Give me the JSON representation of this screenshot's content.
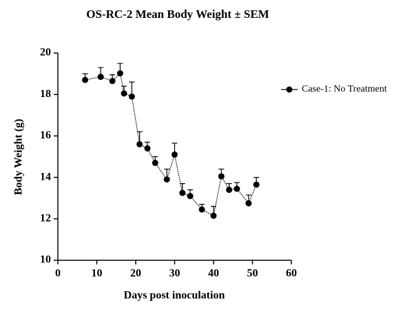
{
  "chart_data": {
    "type": "line",
    "title": "OS-RC-2 Mean Body Weight ± SEM",
    "x_label": "Days post inoculation",
    "y_label": "Body Weight (g)",
    "x": [
      7,
      11,
      14,
      16,
      17,
      19,
      21,
      23,
      25,
      28,
      30,
      32,
      34,
      37,
      40,
      42,
      44,
      46,
      49,
      51
    ],
    "series": [
      {
        "name": "Case-1: No Treatment",
        "color": "#000000",
        "values": [
          18.7,
          18.85,
          18.65,
          19.02,
          18.05,
          17.9,
          15.6,
          15.4,
          14.7,
          13.9,
          15.1,
          13.25,
          13.1,
          12.45,
          12.15,
          14.05,
          13.4,
          13.45,
          12.75,
          13.65
        ],
        "errors": [
          0.3,
          0.45,
          0.3,
          0.48,
          0.35,
          0.7,
          0.6,
          0.3,
          0.3,
          0.5,
          0.55,
          0.45,
          0.3,
          0.25,
          0.45,
          0.35,
          0.3,
          0.3,
          0.4,
          0.35
        ]
      }
    ],
    "xlim": [
      0,
      60
    ],
    "xticks": [
      0,
      10,
      20,
      30,
      40,
      50,
      60
    ],
    "ylim": [
      10,
      20
    ],
    "yticks": [
      10,
      12,
      14,
      16,
      18,
      20
    ],
    "legend": "right"
  }
}
